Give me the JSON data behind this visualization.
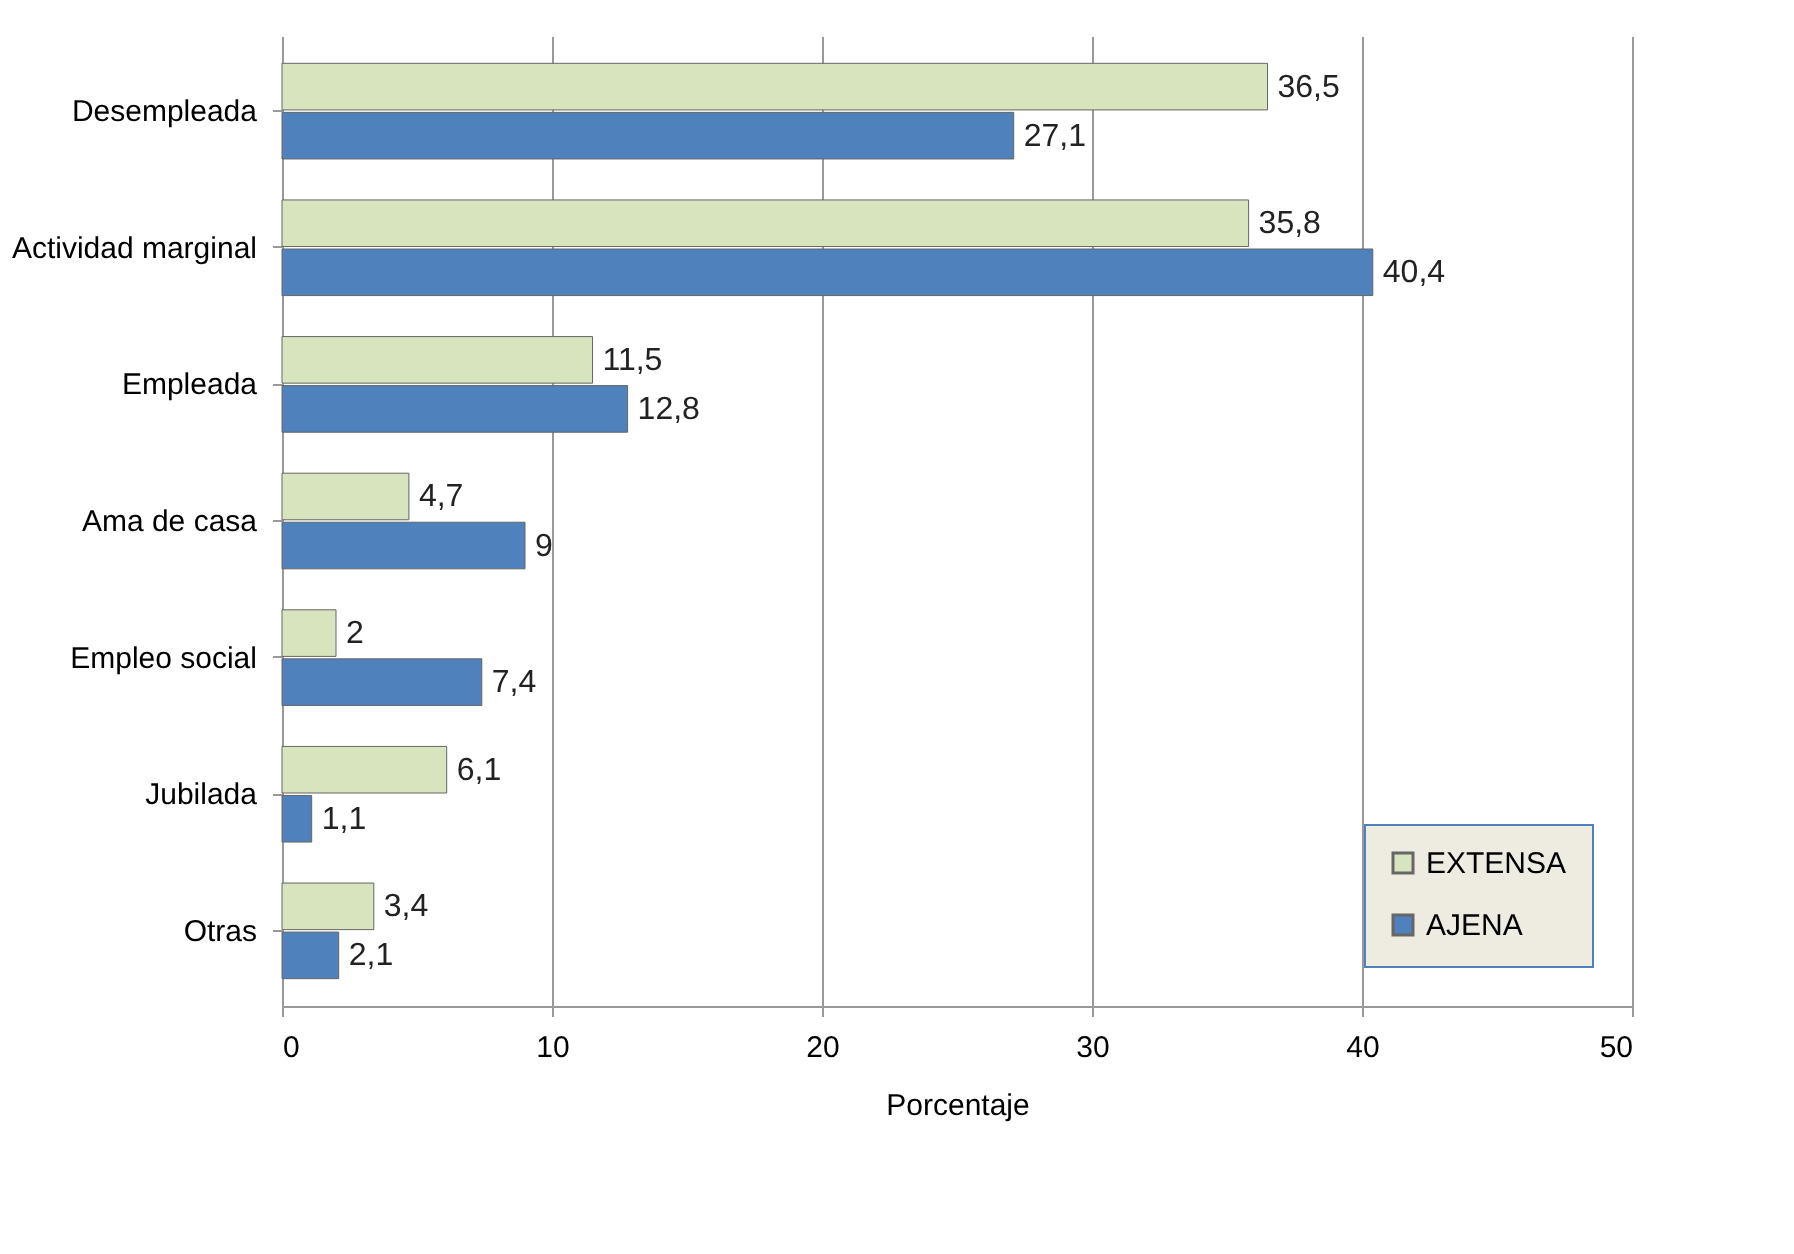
{
  "chart_data": {
    "type": "bar",
    "orientation": "horizontal",
    "xlabel": "Porcentaje",
    "categories": [
      "Desempleada",
      "Actividad marginal",
      "Empleada",
      "Ama de casa",
      "Empleo social",
      "Jubilada",
      "Otras"
    ],
    "series": [
      {
        "name": "EXTENSA",
        "color": "#d7e4bd",
        "values": [
          36.5,
          35.8,
          11.5,
          4.7,
          2,
          6.1,
          3.4
        ],
        "value_labels": [
          "36,5",
          "35,8",
          "11,5",
          "4,7",
          "2",
          "6,1",
          "3,4"
        ]
      },
      {
        "name": "AJENA",
        "color": "#4f81bd",
        "values": [
          27.1,
          40.4,
          12.8,
          9,
          7.4,
          1.1,
          2.1
        ],
        "value_labels": [
          "27,1",
          "40,4",
          "12,8",
          "9",
          "7,4",
          "1,1",
          "2,1"
        ]
      }
    ],
    "xlim": [
      0,
      50
    ],
    "xticks": [
      0,
      10,
      20,
      30,
      40,
      50
    ],
    "grid": "x",
    "legend": "bottom right"
  }
}
